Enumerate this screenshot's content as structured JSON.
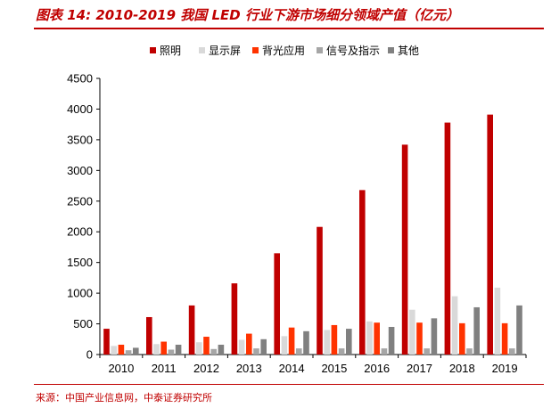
{
  "header": {
    "title": "图表 14:  2010-2019 我国 LED 行业下游市场细分领域产值（亿元）"
  },
  "footer": {
    "source": "来源：中国产业信息网，中泰证券研究所"
  },
  "chart_data": {
    "type": "bar",
    "title": "图表 14:  2010-2019 我国 LED 行业下游市场细分领域产值（亿元）",
    "xlabel": "",
    "ylabel": "",
    "ylim": [
      0,
      4500
    ],
    "yticks": [
      0,
      500,
      1000,
      1500,
      2000,
      2500,
      3000,
      3500,
      4000,
      4500
    ],
    "categories": [
      "2010",
      "2011",
      "2012",
      "2013",
      "2014",
      "2015",
      "2016",
      "2017",
      "2018",
      "2019"
    ],
    "legend_position": "top-center",
    "series": [
      {
        "name": "照明",
        "color": "#c00000",
        "values": [
          420,
          610,
          800,
          1160,
          1650,
          2080,
          2680,
          3420,
          3780,
          3910
        ]
      },
      {
        "name": "显示屏",
        "color": "#d9d9d9",
        "values": [
          140,
          170,
          200,
          240,
          300,
          400,
          540,
          730,
          950,
          1090
        ]
      },
      {
        "name": "背光应用",
        "color": "#ff3300",
        "values": [
          160,
          210,
          290,
          340,
          440,
          480,
          520,
          520,
          510,
          510
        ]
      },
      {
        "name": "信号及指示",
        "color": "#a6a6a6",
        "values": [
          70,
          80,
          90,
          100,
          100,
          100,
          100,
          100,
          100,
          100
        ]
      },
      {
        "name": "其他",
        "color": "#808080",
        "values": [
          110,
          160,
          160,
          250,
          380,
          420,
          450,
          590,
          770,
          800
        ]
      }
    ]
  }
}
